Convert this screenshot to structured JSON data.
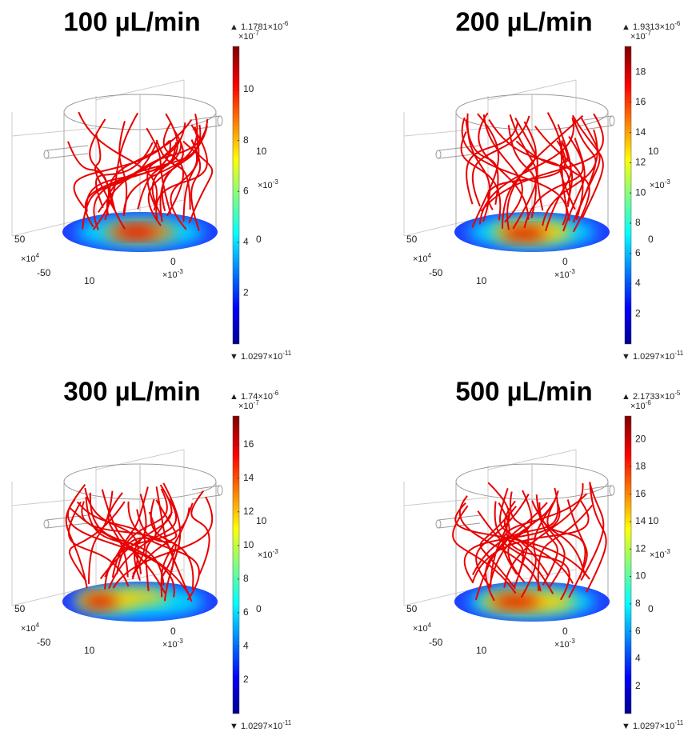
{
  "panels": [
    {
      "title": "100 µL/min",
      "max_label": {
        "mantissa": "1.1781×10",
        "exponent": "-6"
      },
      "scale_label": {
        "mantissa": "×10",
        "exponent": "-7"
      },
      "min_label": {
        "mantissa": "1.0297×10",
        "exponent": "-11"
      },
      "colorbar_ticks": [
        2,
        4,
        6,
        8,
        10
      ],
      "axis_labels": {
        "y_top": "50",
        "y_unit": {
          "mantissa": "×10",
          "exponent": "4"
        },
        "y_bottom": "-50",
        "x_left": "10",
        "x_mid": "0",
        "x_unit": {
          "mantissa": "×10",
          "exponent": "-3"
        },
        "z_top": "10",
        "z_unit": {
          "mantissa": "×10",
          "exponent": "-3"
        },
        "z_mid": "0"
      }
    },
    {
      "title": "200 µL/min",
      "max_label": {
        "mantissa": "1.9313×10",
        "exponent": "-6"
      },
      "scale_label": {
        "mantissa": "×10",
        "exponent": "-7"
      },
      "min_label": {
        "mantissa": "1.0297×10",
        "exponent": "-11"
      },
      "colorbar_ticks": [
        2,
        4,
        6,
        8,
        10,
        12,
        14,
        16,
        18
      ],
      "axis_labels": {
        "y_top": "50",
        "y_unit": {
          "mantissa": "×10",
          "exponent": "4"
        },
        "y_bottom": "-50",
        "x_left": "10",
        "x_mid": "0",
        "x_unit": {
          "mantissa": "×10",
          "exponent": "-3"
        },
        "z_top": "10",
        "z_unit": {
          "mantissa": "×10",
          "exponent": "-3"
        },
        "z_mid": "0"
      }
    },
    {
      "title": "300 µL/min",
      "max_label": {
        "mantissa": "1.74×10",
        "exponent": "-6"
      },
      "scale_label": {
        "mantissa": "×10",
        "exponent": "-7"
      },
      "min_label": {
        "mantissa": "1.0297×10",
        "exponent": "-11"
      },
      "colorbar_ticks": [
        2,
        4,
        6,
        8,
        10,
        12,
        14,
        16
      ],
      "axis_labels": {
        "y_top": "50",
        "y_unit": {
          "mantissa": "×10",
          "exponent": "4"
        },
        "y_bottom": "-50",
        "x_left": "10",
        "x_mid": "0",
        "x_unit": {
          "mantissa": "×10",
          "exponent": "-3"
        },
        "z_top": "10",
        "z_unit": {
          "mantissa": "×10",
          "exponent": "-3"
        },
        "z_mid": "0"
      }
    },
    {
      "title": "500 µL/min",
      "max_label": {
        "mantissa": "2.1733×10",
        "exponent": "-5"
      },
      "scale_label": {
        "mantissa": "×10",
        "exponent": "-6"
      },
      "min_label": {
        "mantissa": "1.0297×10",
        "exponent": "-11"
      },
      "colorbar_ticks": [
        2,
        4,
        6,
        8,
        10,
        12,
        14,
        16,
        18,
        20
      ],
      "axis_labels": {
        "y_top": "50",
        "y_unit": {
          "mantissa": "×10",
          "exponent": "4"
        },
        "y_bottom": "-50",
        "x_left": "10",
        "x_mid": "0",
        "x_unit": {
          "mantissa": "×10",
          "exponent": "-3"
        },
        "z_top": "10",
        "z_unit": {
          "mantissa": "×10",
          "exponent": "-3"
        },
        "z_mid": "0"
      }
    }
  ]
}
